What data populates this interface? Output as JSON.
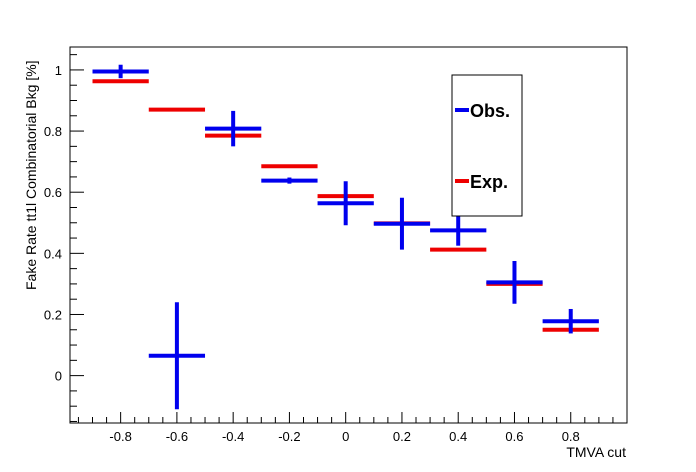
{
  "chart_data": {
    "type": "scatter",
    "title": "",
    "xlabel": "TMVA cut",
    "ylabel": "Fake Rate tt1l Combinatorial Bkg [%]",
    "xlim": [
      -0.98,
      1.0
    ],
    "ylim": [
      -0.155,
      1.075
    ],
    "x_ticks": [
      -0.8,
      -0.6,
      -0.4,
      -0.2,
      0,
      0.2,
      0.4,
      0.6,
      0.8
    ],
    "x_tick_labels": [
      "-0.8",
      "-0.6",
      "-0.4",
      "-0.2",
      "0",
      "0.2",
      "0.4",
      "0.6",
      "0.8"
    ],
    "y_ticks": [
      0,
      0.2,
      0.4,
      0.6,
      0.8,
      1
    ],
    "y_tick_labels": [
      "0",
      "0.2",
      "0.4",
      "0.6",
      "0.8",
      "1"
    ],
    "grid": false,
    "legend_position": "top-right",
    "series": [
      {
        "name": "Obs.",
        "color": "#0000ee",
        "points": [
          {
            "x": -0.8,
            "y": 0.995,
            "xerr": 0.1,
            "yerr": 0.022
          },
          {
            "x": -0.6,
            "y": 0.065,
            "xerr": 0.1,
            "yerr": 0.175
          },
          {
            "x": -0.4,
            "y": 0.808,
            "xerr": 0.1,
            "yerr": 0.058
          },
          {
            "x": -0.2,
            "y": 0.638,
            "xerr": 0.1,
            "yerr": 0.01
          },
          {
            "x": 0.0,
            "y": 0.564,
            "xerr": 0.1,
            "yerr": 0.072
          },
          {
            "x": 0.2,
            "y": 0.497,
            "xerr": 0.1,
            "yerr": 0.085
          },
          {
            "x": 0.4,
            "y": 0.475,
            "xerr": 0.1,
            "yerr": 0.05
          },
          {
            "x": 0.6,
            "y": 0.305,
            "xerr": 0.1,
            "yerr": 0.07
          },
          {
            "x": 0.8,
            "y": 0.178,
            "xerr": 0.1,
            "yerr": 0.04
          }
        ]
      },
      {
        "name": "Exp.",
        "color": "#ee0000",
        "points": [
          {
            "x": -0.8,
            "y": 0.963,
            "xerr": 0.1
          },
          {
            "x": -0.6,
            "y": 0.87,
            "xerr": 0.1
          },
          {
            "x": -0.4,
            "y": 0.785,
            "xerr": 0.1
          },
          {
            "x": -0.2,
            "y": 0.685,
            "xerr": 0.1
          },
          {
            "x": 0.0,
            "y": 0.587,
            "xerr": 0.1
          },
          {
            "x": 0.2,
            "y": 0.498,
            "xerr": 0.1
          },
          {
            "x": 0.4,
            "y": 0.412,
            "xerr": 0.1
          },
          {
            "x": 0.6,
            "y": 0.3,
            "xerr": 0.1
          },
          {
            "x": 0.8,
            "y": 0.15,
            "xerr": 0.1
          }
        ]
      }
    ]
  }
}
